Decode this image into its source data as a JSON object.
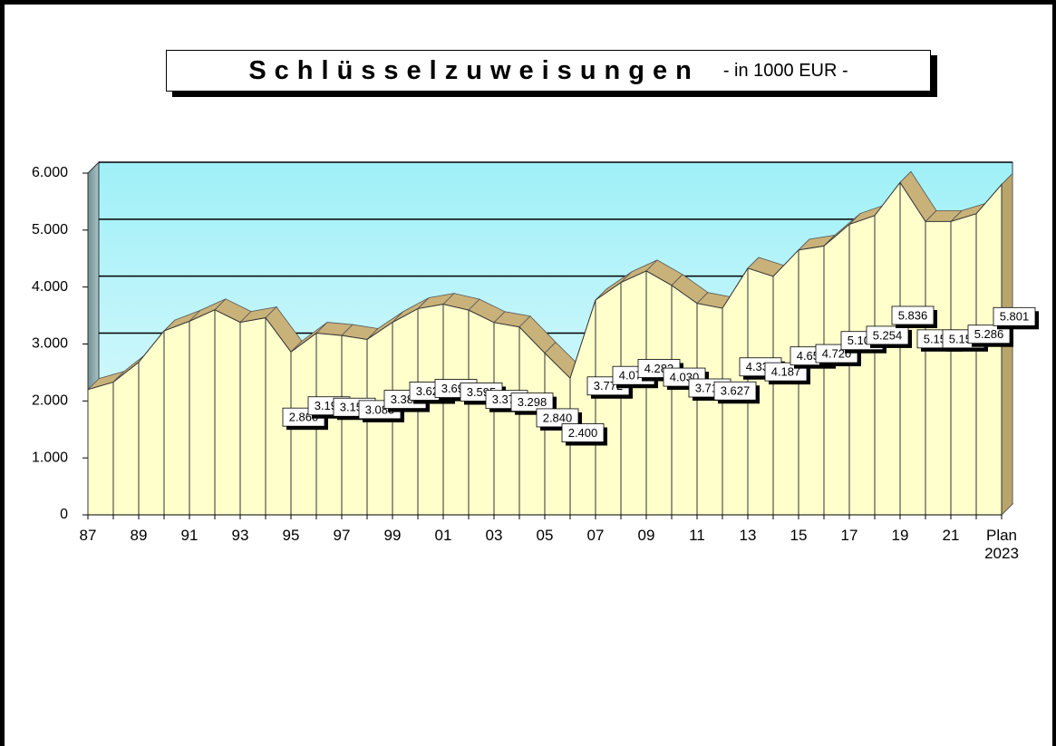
{
  "chart_data": {
    "type": "area3d",
    "title": "Schlüsselzuweisungen",
    "subtitle": "- in 1000 EUR -",
    "categories": [
      "87",
      null,
      "89",
      null,
      "91",
      null,
      "93",
      null,
      "95",
      null,
      "97",
      null,
      "99",
      null,
      "01",
      null,
      "03",
      null,
      "05",
      null,
      "07",
      null,
      "09",
      null,
      "11",
      null,
      "13",
      null,
      "15",
      null,
      "17",
      null,
      "19",
      null,
      "21",
      null,
      "Plan 2023"
    ],
    "values": [
      2200,
      2330,
      2680,
      3230,
      3400,
      3600,
      3380,
      3460,
      2860,
      3190,
      3150,
      3080,
      3380,
      3620,
      3698,
      3595,
      3377,
      3298,
      2840,
      2400,
      3772,
      4079,
      4283,
      4030,
      3713,
      3627,
      4330,
      4187,
      4650,
      4720,
      5100,
      5254,
      5836,
      5150,
      5150,
      5286,
      5801
    ],
    "value_labels": [
      null,
      null,
      null,
      null,
      null,
      null,
      null,
      null,
      "2.860",
      "3.190",
      "3.150",
      "3.080",
      "3.380",
      "3.620",
      "3.698",
      "3.595",
      "3.377",
      "3.298",
      "2.840",
      "2.400",
      "3.772",
      "4.079",
      "4.283",
      "4.030",
      "3.713",
      "3.627",
      "4.330",
      "4.187",
      "4.650",
      "4.720",
      "5.100",
      "5.254",
      "5.836",
      "5.150",
      "5.150",
      "5.286",
      "5.801"
    ],
    "color": "#ffffcc",
    "ylim": [
      0,
      6000
    ],
    "yticks": [
      0,
      {
        "value": 1000,
        "label": "1.000"
      },
      {
        "value": 2000,
        "label": "2.000"
      },
      {
        "value": 3000,
        "label": "3.000"
      },
      {
        "value": 4000,
        "label": "4.000"
      },
      {
        "value": 5000,
        "label": "5.000"
      },
      {
        "value": 6000,
        "label": "6.000"
      }
    ],
    "grid": true
  }
}
